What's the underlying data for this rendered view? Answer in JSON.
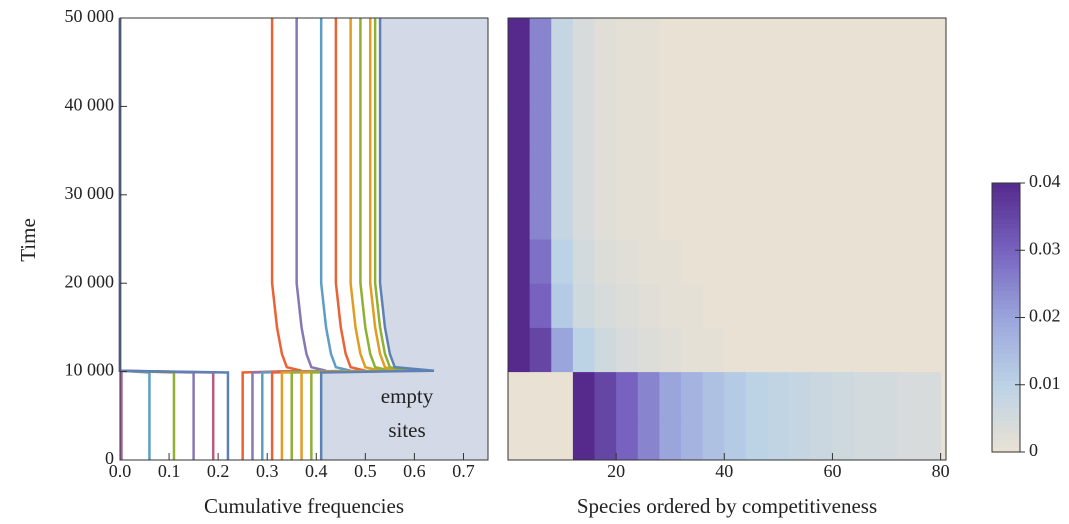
{
  "chart_data": [
    {
      "type": "line",
      "xlabel": "Cumulative frequencies",
      "ylabel": "Time",
      "annotation": [
        "empty",
        "sites"
      ],
      "xlim": [
        0,
        0.75
      ],
      "xticks": [
        {
          "value": 0,
          "label": "0.0"
        },
        0.1,
        0.2,
        0.3,
        0.4,
        0.5,
        0.6,
        0.7
      ],
      "ylim": [
        0,
        50000
      ],
      "yticks": [
        0,
        {
          "value": 10000,
          "label": "10 000"
        },
        {
          "value": 20000,
          "label": "20 000"
        },
        {
          "value": 30000,
          "label": "30 000"
        },
        {
          "value": 40000,
          "label": "40 000"
        },
        {
          "value": 50000,
          "label": "50 000"
        }
      ],
      "shade_color": "#d4d9e7",
      "y": [
        0,
        9900,
        10100,
        10500,
        12000,
        15000,
        20000,
        50000
      ],
      "series": [
        {
          "color": "#a5609d",
          "values": [
            0.003,
            0.003,
            0,
            0,
            0,
            0,
            0,
            0
          ]
        },
        {
          "color": "#5d9ec7",
          "values": [
            0.06,
            0.06,
            0,
            0,
            0,
            0,
            0,
            0
          ]
        },
        {
          "color": "#8fb032",
          "values": [
            0.11,
            0.11,
            0,
            0,
            0,
            0,
            0,
            0
          ]
        },
        {
          "color": "#8778b3",
          "values": [
            0.15,
            0.15,
            0,
            0,
            0,
            0,
            0,
            0
          ]
        },
        {
          "color": "#bc5b80",
          "values": [
            0.19,
            0.19,
            0,
            0,
            0,
            0,
            0,
            0
          ]
        },
        {
          "color": "#5e81b5",
          "values": [
            0.22,
            0.22,
            0,
            0,
            0,
            0,
            0,
            0
          ]
        },
        {
          "color": "#eb6235",
          "values": [
            0.25,
            0.25,
            0.37,
            0.34,
            0.33,
            0.32,
            0.31,
            0.31
          ]
        },
        {
          "color": "#8778b3",
          "values": [
            0.27,
            0.27,
            0.42,
            0.39,
            0.38,
            0.37,
            0.36,
            0.36
          ]
        },
        {
          "color": "#5d9ec7",
          "values": [
            0.29,
            0.29,
            0.47,
            0.44,
            0.43,
            0.42,
            0.41,
            0.41
          ]
        },
        {
          "color": "#eb6235",
          "values": [
            0.31,
            0.31,
            0.5,
            0.47,
            0.46,
            0.45,
            0.44,
            0.44
          ]
        },
        {
          "color": "#e19c24",
          "values": [
            0.33,
            0.33,
            0.53,
            0.5,
            0.49,
            0.48,
            0.47,
            0.47
          ]
        },
        {
          "color": "#8fb032",
          "values": [
            0.35,
            0.35,
            0.55,
            0.52,
            0.51,
            0.5,
            0.49,
            0.49
          ]
        },
        {
          "color": "#e19c24",
          "values": [
            0.37,
            0.37,
            0.57,
            0.54,
            0.53,
            0.52,
            0.51,
            0.51
          ]
        },
        {
          "color": "#8fb032",
          "values": [
            0.39,
            0.39,
            0.59,
            0.55,
            0.54,
            0.53,
            0.52,
            0.52
          ]
        },
        {
          "color": "#5e81b5",
          "values": [
            0.41,
            0.41,
            0.64,
            0.56,
            0.55,
            0.54,
            0.53,
            0.53
          ]
        }
      ]
    },
    {
      "type": "heatmap",
      "xlabel": "Species ordered by competitiveness",
      "xlim": [
        0,
        81
      ],
      "xticks": [
        20,
        40,
        60,
        80
      ],
      "ylim": [
        0,
        50000
      ],
      "x": [
        2,
        6,
        10,
        14,
        18,
        22,
        26,
        30,
        34,
        38,
        42,
        46,
        50,
        54,
        58,
        62,
        66,
        70,
        74,
        78
      ],
      "y": [
        2500,
        7500,
        12500,
        17500,
        22500,
        27500,
        32500,
        37500,
        42500,
        47500
      ],
      "z": [
        [
          0,
          0,
          0,
          0.04,
          0.035,
          0.03,
          0.025,
          0.02,
          0.017,
          0.014,
          0.012,
          0.01,
          0.009,
          0.008,
          0.007,
          0.006,
          0.005,
          0.005,
          0.004,
          0.004
        ],
        [
          0,
          0,
          0,
          0.04,
          0.035,
          0.03,
          0.025,
          0.02,
          0.017,
          0.014,
          0.012,
          0.01,
          0.009,
          0.008,
          0.007,
          0.006,
          0.005,
          0.005,
          0.004,
          0.004
        ],
        [
          0.04,
          0.035,
          0.02,
          0.01,
          0.006,
          0.004,
          0.003,
          0.002,
          0.001,
          0.001,
          0,
          0,
          0,
          0,
          0,
          0,
          0,
          0,
          0,
          0
        ],
        [
          0.04,
          0.03,
          0.012,
          0.006,
          0.004,
          0.003,
          0.002,
          0.001,
          0.001,
          0,
          0,
          0,
          0,
          0,
          0,
          0,
          0,
          0,
          0,
          0
        ],
        [
          0.04,
          0.028,
          0.01,
          0.005,
          0.003,
          0.002,
          0.001,
          0.001,
          0,
          0,
          0,
          0,
          0,
          0,
          0,
          0,
          0,
          0,
          0,
          0
        ],
        [
          0.04,
          0.025,
          0.008,
          0.004,
          0.002,
          0.001,
          0.001,
          0,
          0,
          0,
          0,
          0,
          0,
          0,
          0,
          0,
          0,
          0,
          0,
          0
        ],
        [
          0.04,
          0.025,
          0.008,
          0.004,
          0.002,
          0.001,
          0.001,
          0,
          0,
          0,
          0,
          0,
          0,
          0,
          0,
          0,
          0,
          0,
          0,
          0
        ],
        [
          0.04,
          0.025,
          0.008,
          0.004,
          0.002,
          0.001,
          0.001,
          0,
          0,
          0,
          0,
          0,
          0,
          0,
          0,
          0,
          0,
          0,
          0,
          0
        ],
        [
          0.04,
          0.025,
          0.008,
          0.004,
          0.002,
          0.001,
          0.001,
          0,
          0,
          0,
          0,
          0,
          0,
          0,
          0,
          0,
          0,
          0,
          0,
          0
        ],
        [
          0.04,
          0.025,
          0.008,
          0.004,
          0.002,
          0.001,
          0.001,
          0,
          0,
          0,
          0,
          0,
          0,
          0,
          0,
          0,
          0,
          0,
          0,
          0
        ]
      ],
      "zlim": [
        0,
        0.04
      ],
      "zticks": [
        0,
        0.01,
        0.02,
        0.03,
        0.04
      ],
      "colors": [
        "#e9e1d3",
        "#bcd3e6",
        "#9aa5dc",
        "#7763bf",
        "#552a8c"
      ]
    }
  ]
}
